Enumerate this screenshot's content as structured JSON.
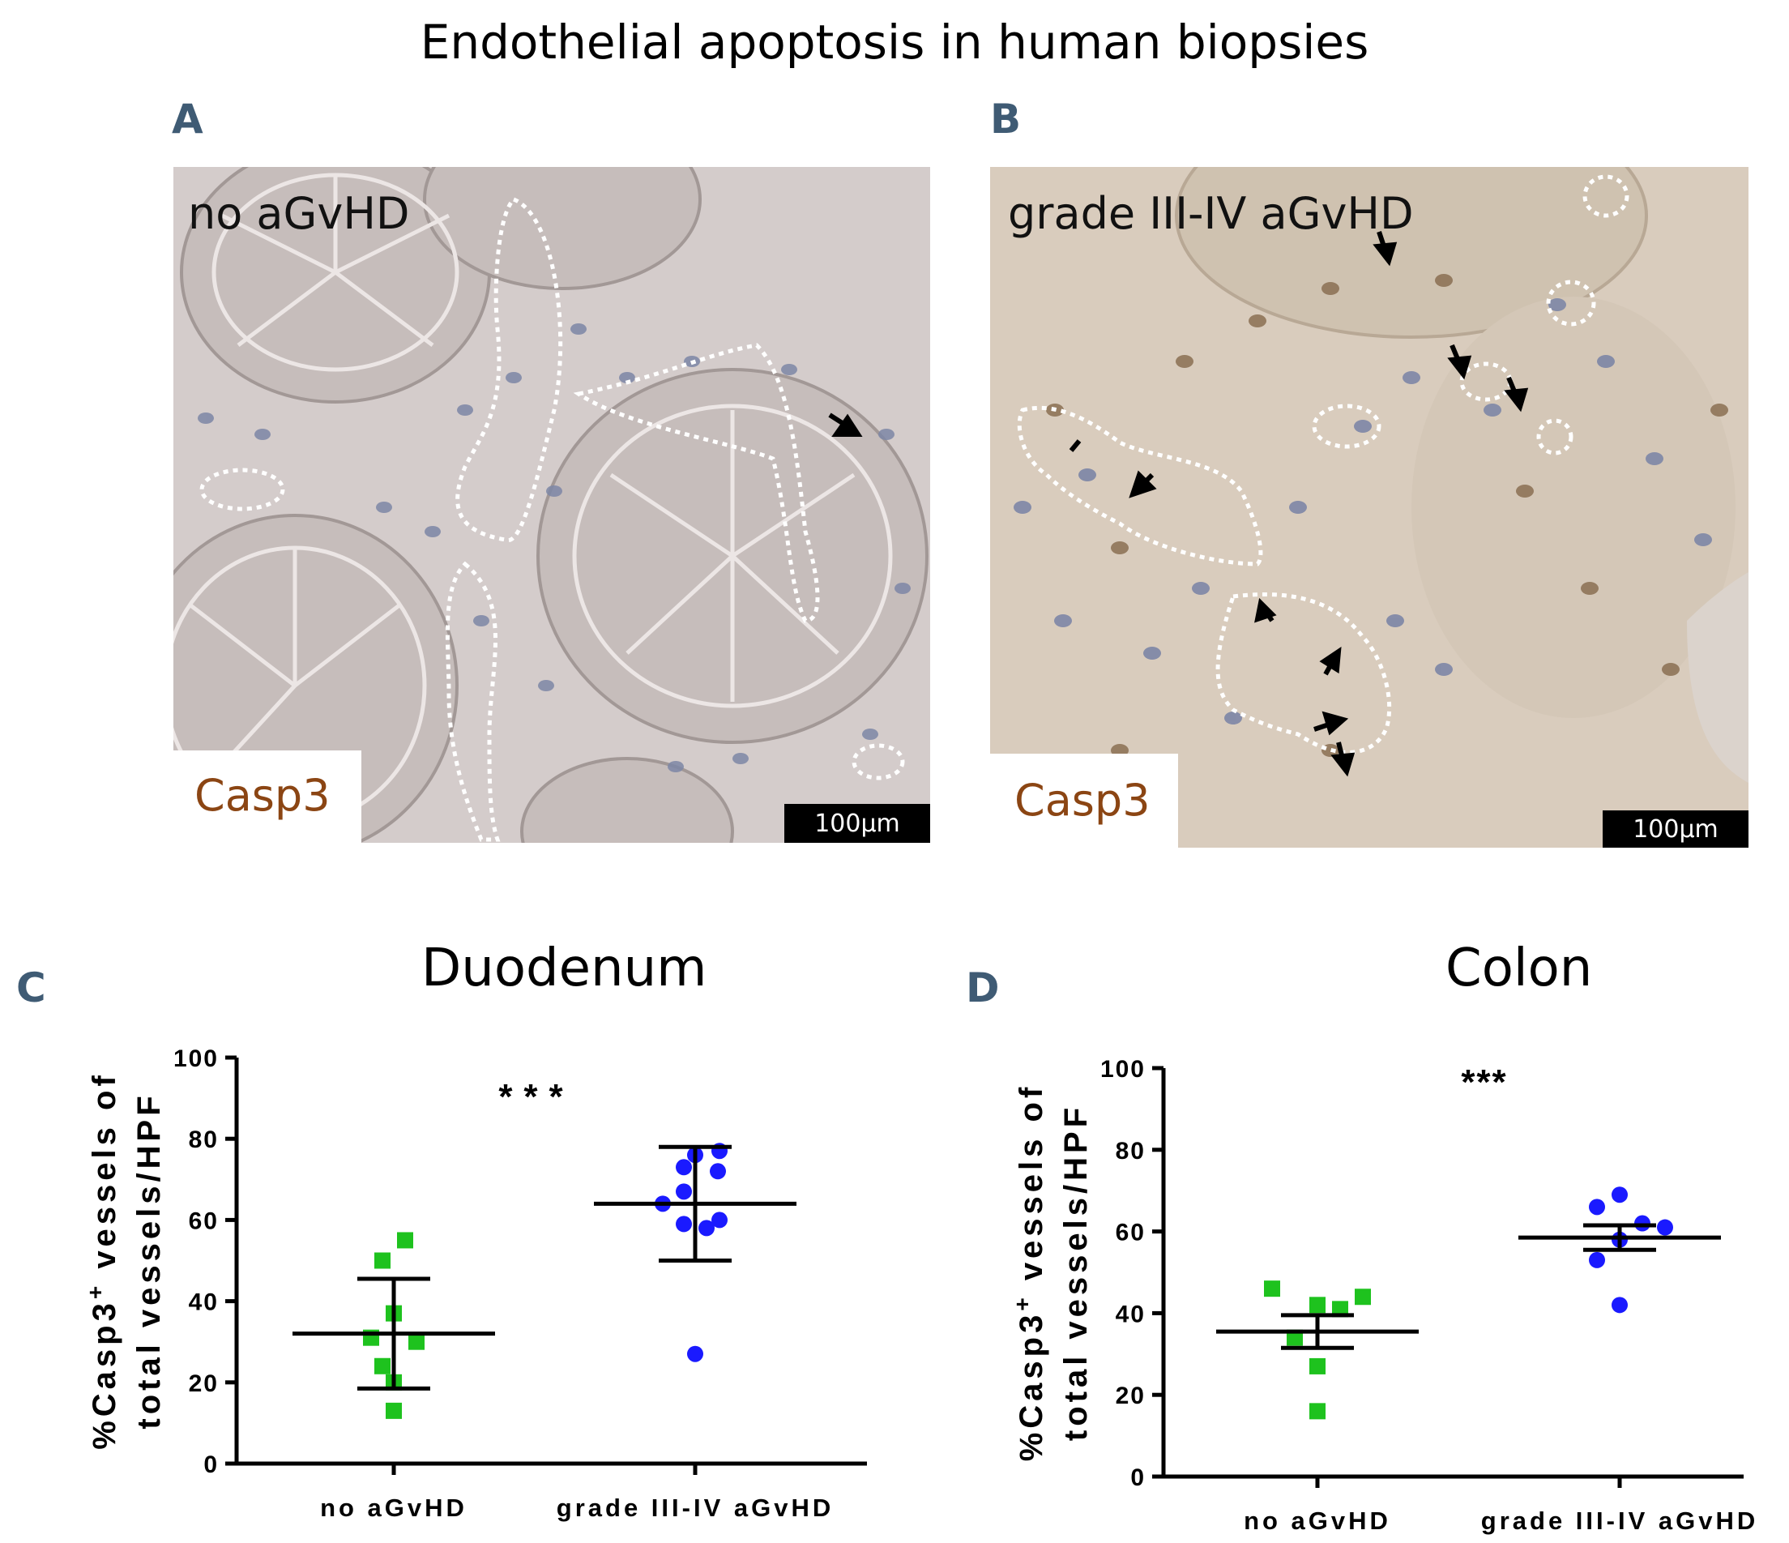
{
  "figure": {
    "title": "Endothelial apoptosis in human biopsies",
    "panels": {
      "a": {
        "letter": "A",
        "label": "no aGvHD",
        "stain": "Casp3",
        "scale": "100µm"
      },
      "b": {
        "letter": "B",
        "label": "grade III-IV aGvHD",
        "stain": "Casp3",
        "scale": "100µm"
      },
      "c": {
        "letter": "C"
      },
      "d": {
        "letter": "D"
      }
    }
  },
  "colors": {
    "tissue_a": "#cbc2c1",
    "tissue_b": "#d8c6b4",
    "nuclei": "#7d86a6",
    "brown_nuclei": "#8a6e52",
    "stain_text": "#8b4513",
    "panel_letter": "#3f5b74",
    "no_agvhd_marker": "#1ec21e",
    "agvhd_marker": "#1a1aff"
  },
  "chart_data": [
    {
      "type": "scatter",
      "title": "Duodenum",
      "ylabel_line1": "%Casp3",
      "ylabel_sup": "+",
      "ylabel_line1_tail": " vessels of",
      "ylabel_line2": "total vessels/HPF",
      "ylim": [
        0,
        100
      ],
      "yticks": [
        "0",
        "20",
        "40",
        "60",
        "80",
        "100"
      ],
      "categories": [
        "no aGvHD",
        "grade III-IV aGvHD"
      ],
      "significance": "***",
      "series": [
        {
          "values": [
            55,
            50,
            37,
            31,
            30,
            24,
            20,
            13
          ],
          "marker": "square",
          "mean": 32,
          "sd": [
            18.5,
            45.5
          ]
        },
        {
          "values": [
            77,
            76,
            73,
            72,
            67,
            64,
            60,
            59,
            58,
            27
          ],
          "marker": "circle",
          "mean": 64,
          "sd": [
            50,
            78
          ]
        }
      ],
      "grid": false
    },
    {
      "type": "scatter",
      "title": "Colon",
      "ylabel_line1": "%Casp3",
      "ylabel_sup": "+",
      "ylabel_line1_tail": " vessels of",
      "ylabel_line2": "total vessels/HPF",
      "ylim": [
        0,
        100
      ],
      "yticks": [
        "0",
        "20",
        "40",
        "60",
        "80",
        "100"
      ],
      "categories": [
        "no aGvHD",
        "grade III-IV aGvHD"
      ],
      "significance": "***",
      "series": [
        {
          "values": [
            46,
            44,
            42,
            41,
            34,
            27,
            16
          ],
          "marker": "square",
          "mean": 35.5,
          "sd": [
            31.5,
            39.5
          ]
        },
        {
          "values": [
            69,
            66,
            62,
            61,
            58,
            53,
            42
          ],
          "marker": "circle",
          "mean": 58.5,
          "sd": [
            55.5,
            61.5
          ]
        }
      ],
      "grid": false
    }
  ]
}
